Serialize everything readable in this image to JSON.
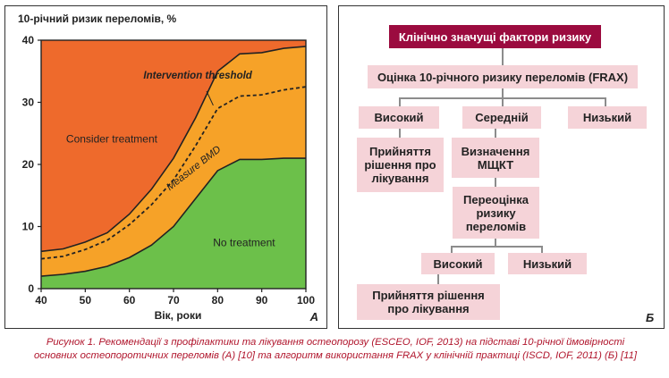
{
  "chart_data": {
    "type": "area",
    "title": "10-річний ризик переломів, %",
    "xlabel": "Вік, роки",
    "ylabel": "10-річний ризик переломів, %",
    "xlim": [
      40,
      100
    ],
    "ylim": [
      0,
      40
    ],
    "x_ticks": [
      40,
      50,
      60,
      70,
      80,
      90,
      100
    ],
    "y_ticks": [
      0,
      10,
      20,
      30,
      40
    ],
    "x": [
      40,
      45,
      50,
      55,
      60,
      65,
      70,
      75,
      80,
      85,
      90,
      95,
      100
    ],
    "series": [
      {
        "name": "No treatment",
        "values": [
          2.0,
          2.3,
          2.8,
          3.6,
          5.0,
          7.0,
          10.0,
          14.5,
          19.0,
          20.8,
          20.8,
          21.0,
          21.0
        ]
      },
      {
        "name": "Measure BMD",
        "values": [
          6.0,
          6.4,
          7.5,
          9.0,
          12.0,
          16.0,
          21.0,
          27.5,
          35.0,
          37.8,
          38.0,
          38.7,
          39.0
        ]
      },
      {
        "name": "Consider treatment",
        "values": [
          40,
          40,
          40,
          40,
          40,
          40,
          40,
          40,
          40,
          40,
          40,
          40,
          40
        ]
      }
    ],
    "intervention_threshold": [
      4.8,
      5.2,
      6.3,
      7.8,
      10.3,
      13.5,
      17.5,
      23.0,
      29.0,
      31.0,
      31.2,
      32.0,
      32.5
    ],
    "annotations": {
      "intervention": "Intervention threshold",
      "consider": "Consider treatment",
      "measure": "Measure BMD",
      "no_treatment": "No treatment"
    },
    "colors": {
      "red": "#ee6a2c",
      "orange": "#f6a228",
      "green": "#6cc04a",
      "dashed": "#222222"
    },
    "panel_letter": "A"
  },
  "flow": {
    "top": "Клінічно значущі фактори ризику",
    "frax": "Оцінка 10-річного ризику переломів (FRAX)",
    "high1": "Високий",
    "medium": "Середній",
    "low1": "Низький",
    "decision1": "Прийняття рішення про лікування",
    "bmd": "Визначення МЩКТ",
    "reassess": "Переоцінка ризику переломів",
    "high2": "Високий",
    "low2": "Низький",
    "decision2": "Прийняття рішення про лікування",
    "panel_letter": "Б"
  },
  "caption": {
    "line1": "Рисунок 1. Рекомендації з профілактики та лікування остеопорозу (ESCEO, IOF, 2013) на підставі 10-річної ймовірності",
    "line2": "основних остеопоротичних переломів (А) [10] та алгоритм використання FRAX у клінічній практиці (ISCD, IOF, 2011) (Б) [11]"
  }
}
